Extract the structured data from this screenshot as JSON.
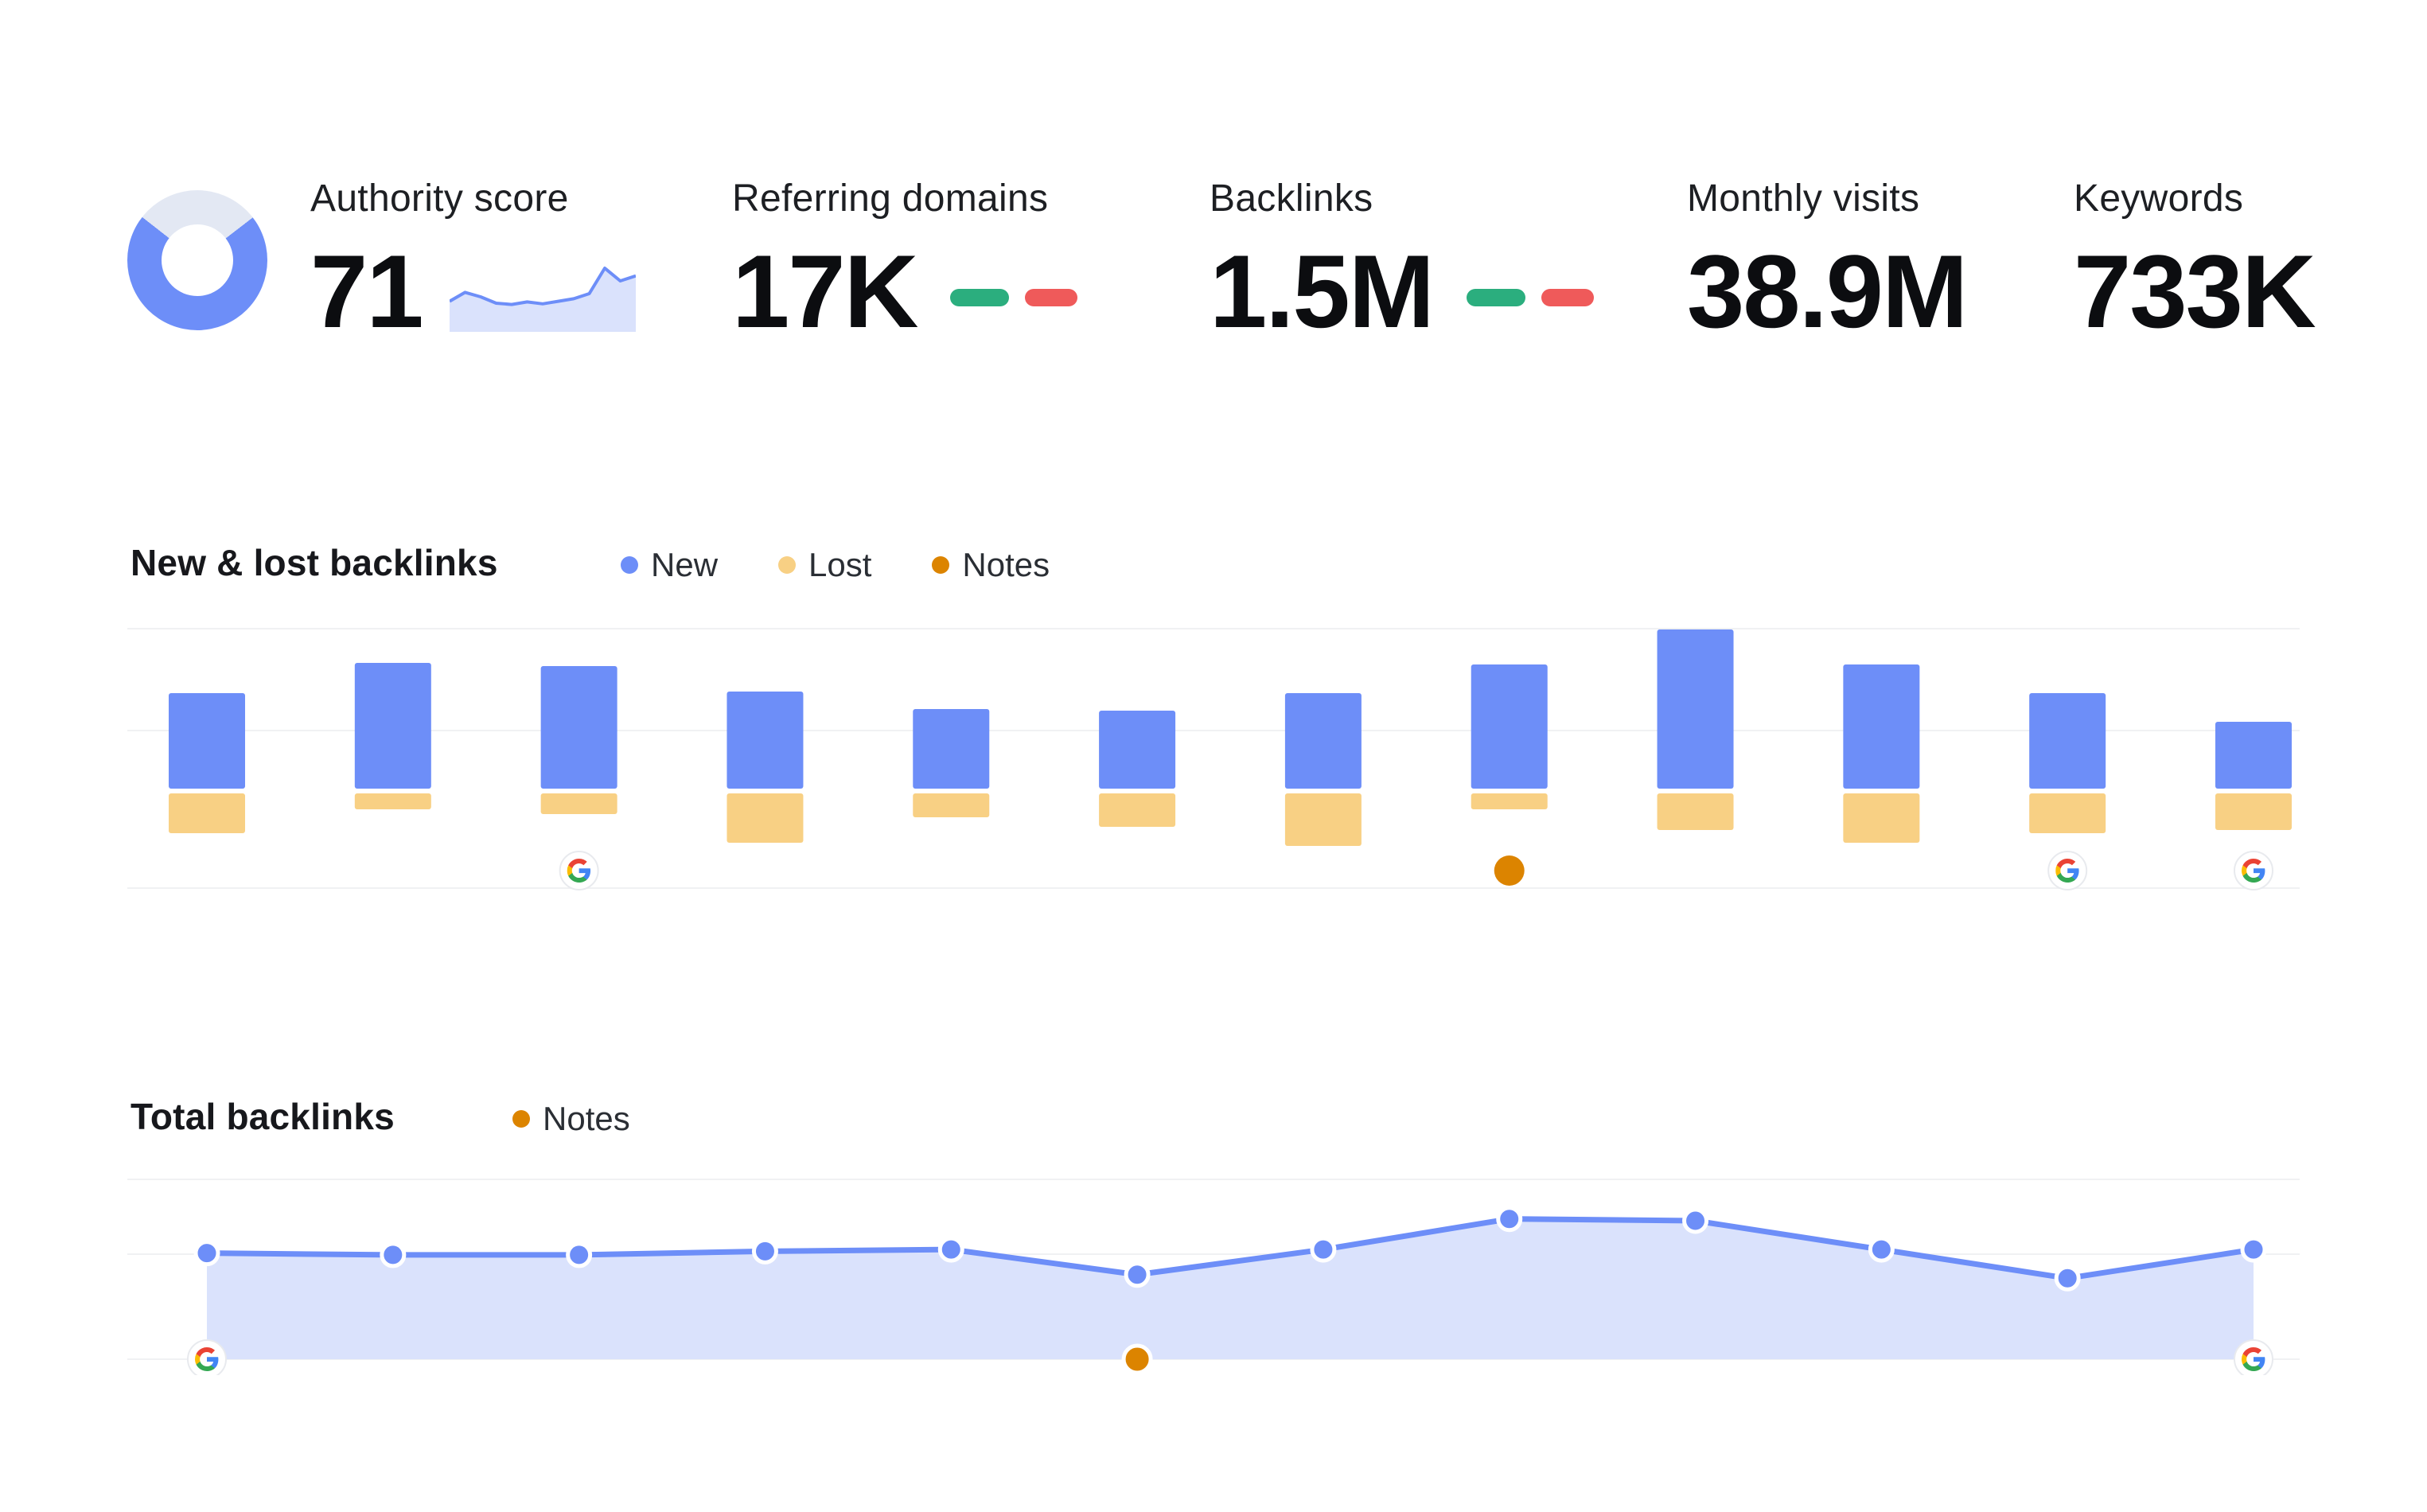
{
  "header": {
    "metrics": [
      {
        "name": "authority_score",
        "label": "Authority score",
        "value": "71"
      },
      {
        "name": "referring_domains",
        "label": "Referring domains",
        "value": "17K",
        "trend_indicators": [
          "gained",
          "lost"
        ]
      },
      {
        "name": "backlinks",
        "label": "Backlinks",
        "value": "1.5M",
        "trend_indicators": [
          "gained",
          "lost"
        ]
      },
      {
        "name": "monthly_visits",
        "label": "Monthly visits",
        "value": "38.9M"
      },
      {
        "name": "keywords",
        "label": "Keywords",
        "value": "733K"
      }
    ],
    "authority_donut_percent": 71,
    "authority_trend_sparkline": [
      48,
      62,
      55,
      45,
      43,
      47,
      44,
      48,
      52,
      60,
      100,
      80,
      88
    ]
  },
  "colors": {
    "blue": "#6D8EF8",
    "blue_area": "#DAE2FC",
    "yellow": "#F8D084",
    "orange": "#DC8400",
    "green": "#2BAE7E",
    "red": "#EF5A5A",
    "donut_track": "#E3E8F3",
    "grid": "#F0F1F3",
    "text_dark": "#17181C"
  },
  "icons": {
    "google_update": "google-g-logo",
    "note": "orange-note-dot",
    "legend_new": "blue-dot",
    "legend_lost": "yellow-dot",
    "legend_notes": "orange-dot"
  },
  "chart_data": [
    {
      "type": "bar",
      "title": "New & lost backlinks",
      "legend": [
        {
          "label": "New",
          "color": "#6D8EF8"
        },
        {
          "label": "Lost",
          "color": "#F8D084"
        },
        {
          "label": "Notes",
          "color": "#DC8400"
        }
      ],
      "x_labels_visible": false,
      "y_labels_visible": false,
      "values_scale": "relative 0-100, estimated from bar heights (no axis labels shown)",
      "categories_count": 12,
      "series": [
        {
          "name": "New",
          "direction": "up",
          "values": [
            60,
            79,
            77,
            61,
            50,
            49,
            60,
            78,
            100,
            78,
            60,
            42
          ]
        },
        {
          "name": "Lost",
          "direction": "down",
          "values": [
            25,
            10,
            13,
            31,
            15,
            21,
            33,
            10,
            23,
            31,
            25,
            23
          ]
        }
      ],
      "note_indexes": [
        7
      ],
      "google_update_indexes": [
        2,
        10,
        11
      ]
    },
    {
      "type": "area",
      "title": "Total backlinks",
      "legend": [
        {
          "label": "Notes",
          "color": "#DC8400"
        }
      ],
      "x_labels_visible": false,
      "y_labels_visible": false,
      "values_scale": "relative 0-100, estimated from line height (no axis labels shown)",
      "values": [
        59,
        58,
        58,
        60,
        61,
        47,
        61,
        78,
        77,
        61,
        45,
        61
      ],
      "note_indexes": [
        5
      ],
      "google_update_indexes": [
        0,
        11
      ]
    }
  ]
}
